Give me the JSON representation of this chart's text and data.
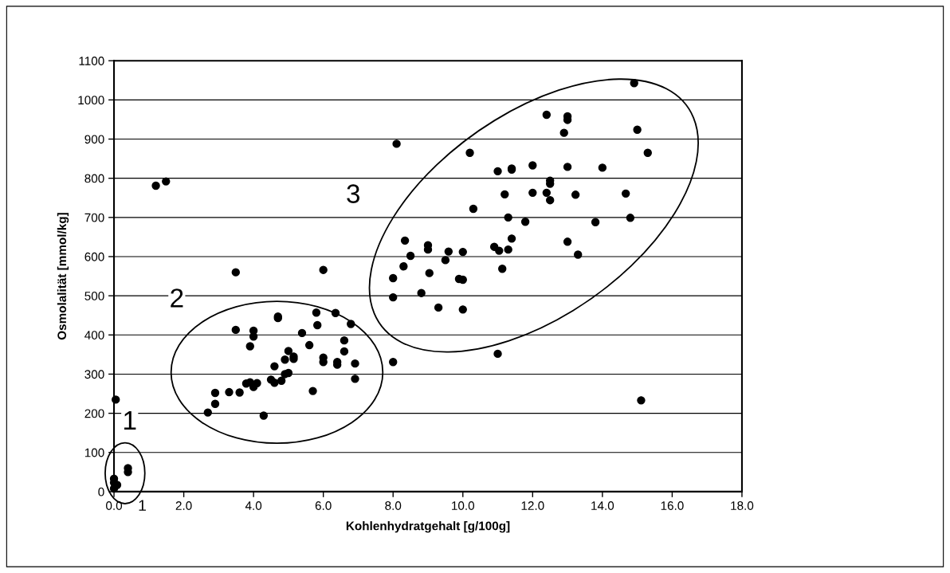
{
  "chart_data": {
    "type": "scatter",
    "xlabel": "Kohlenhydratgehalt [g/100g]",
    "ylabel": "Osmolalität [mmol/kg]",
    "x": [
      0.0,
      0.0,
      0.09,
      0.0,
      0.05,
      0.4,
      0.4,
      1.2,
      1.49,
      3.49,
      6.0,
      8.1,
      8.0,
      11.0,
      15.11,
      2.69,
      2.9,
      2.9,
      3.3,
      3.6,
      3.49,
      3.79,
      3.9,
      4.0,
      4.1,
      3.9,
      4.0,
      4.0,
      4.29,
      4.5,
      4.6,
      4.6,
      4.7,
      4.7,
      4.8,
      4.9,
      5.0,
      5.0,
      4.9,
      5.15,
      5.15,
      5.39,
      5.6,
      5.7,
      5.8,
      5.83,
      6.0,
      6.0,
      6.35,
      6.4,
      6.4,
      6.6,
      6.6,
      6.79,
      6.91,
      6.91,
      14.91,
      12.4,
      13.0,
      13.0,
      12.9,
      15.0,
      10.2,
      15.3,
      11.0,
      11.4,
      11.4,
      12.0,
      13.0,
      14.0,
      12.5,
      12.5,
      11.2,
      12.0,
      12.4,
      12.5,
      13.23,
      14.67,
      10.3,
      11.3,
      11.79,
      13.8,
      14.8,
      8.34,
      9.0,
      9.0,
      9.59,
      10.0,
      8.5,
      10.9,
      11.04,
      11.3,
      11.4,
      13.0,
      13.3,
      8.3,
      9.5,
      8.0,
      9.04,
      11.13,
      9.89,
      10.0,
      8.81,
      8.0,
      9.3,
      10.0
    ],
    "values": [
      33,
      23,
      17,
      8,
      235,
      60,
      50,
      781,
      792,
      560,
      566,
      888,
      331,
      352,
      233,
      202,
      252,
      224,
      254,
      253,
      413,
      276,
      279,
      267,
      277,
      371,
      411,
      396,
      194,
      286,
      278,
      320,
      447,
      443,
      283,
      300,
      359,
      303,
      337,
      345,
      339,
      405,
      374,
      257,
      457,
      425,
      342,
      331,
      456,
      331,
      324,
      386,
      358,
      428,
      327,
      288,
      1043,
      962,
      958,
      949,
      916,
      924,
      865,
      865,
      818,
      825,
      822,
      833,
      829,
      827,
      794,
      786,
      759,
      763,
      763,
      744,
      758,
      761,
      722,
      700,
      689,
      688,
      699,
      641,
      629,
      618,
      613,
      612,
      602,
      625,
      615,
      618,
      646,
      638,
      605,
      575,
      591,
      545,
      558,
      569,
      543,
      541,
      507,
      496,
      470,
      465
    ],
    "color": "#000000",
    "marker": "circle",
    "xlim": [
      0,
      18
    ],
    "ylim": [
      0,
      1100
    ],
    "xticks": [
      {
        "value": 0,
        "label": "0.0"
      },
      {
        "value": 2,
        "label": "2.0"
      },
      {
        "value": 4,
        "label": "4.0"
      },
      {
        "value": 6,
        "label": "6.0"
      },
      {
        "value": 8,
        "label": "8.0"
      },
      {
        "value": 10,
        "label": "10.0"
      },
      {
        "value": 12,
        "label": "12.0"
      },
      {
        "value": 14,
        "label": "14.0"
      },
      {
        "value": 16,
        "label": "16.0"
      },
      {
        "value": 18,
        "label": "18.0"
      }
    ],
    "yticks": [
      0,
      100,
      200,
      300,
      400,
      500,
      600,
      700,
      800,
      900,
      1000,
      1100
    ],
    "grid": "y",
    "legend": false,
    "annotations": [
      "1",
      "2",
      "3",
      "1"
    ]
  }
}
